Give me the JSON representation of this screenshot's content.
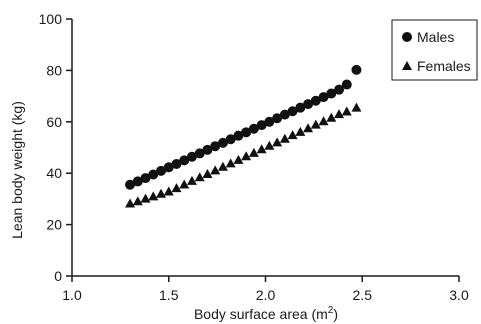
{
  "chart_data": {
    "type": "scatter",
    "title": "",
    "xlabel": "Body surface area (m",
    "xlabel_sup": "2",
    "xlabel_close": ")",
    "ylabel": "Lean body weight (kg)",
    "xlim": [
      1.0,
      3.0
    ],
    "ylim": [
      0,
      100
    ],
    "xticks": [
      "1.0",
      "1.5",
      "2.0",
      "2.5",
      "3.0"
    ],
    "yticks": [
      "0",
      "20",
      "40",
      "60",
      "80",
      "100"
    ],
    "grid": false,
    "legend_position": "top-right",
    "series": [
      {
        "name": "Males",
        "marker": "circle",
        "color": "#111111",
        "x": [
          1.3,
          1.34,
          1.38,
          1.42,
          1.46,
          1.5,
          1.54,
          1.58,
          1.62,
          1.66,
          1.7,
          1.74,
          1.78,
          1.82,
          1.86,
          1.9,
          1.94,
          1.98,
          2.02,
          2.06,
          2.1,
          2.14,
          2.18,
          2.22,
          2.26,
          2.3,
          2.34,
          2.38,
          2.42,
          2.47
        ],
        "y": [
          35.5,
          36.8,
          38.1,
          39.5,
          40.9,
          42.3,
          43.6,
          45.0,
          46.4,
          47.7,
          49.1,
          50.5,
          51.8,
          53.2,
          54.6,
          55.9,
          57.3,
          58.7,
          60.0,
          61.4,
          62.8,
          64.1,
          65.5,
          66.9,
          68.2,
          69.6,
          71.0,
          72.5,
          74.5,
          80.2
        ]
      },
      {
        "name": "Females",
        "marker": "triangle",
        "color": "#111111",
        "x": [
          1.3,
          1.34,
          1.38,
          1.42,
          1.46,
          1.5,
          1.54,
          1.58,
          1.62,
          1.66,
          1.7,
          1.74,
          1.78,
          1.82,
          1.86,
          1.9,
          1.94,
          1.98,
          2.02,
          2.06,
          2.1,
          2.14,
          2.18,
          2.22,
          2.26,
          2.3,
          2.34,
          2.38,
          2.42,
          2.47
        ],
        "y": [
          28.2,
          29.1,
          30.1,
          31.0,
          32.0,
          32.9,
          34.2,
          35.6,
          37.0,
          38.4,
          39.7,
          41.1,
          42.5,
          43.8,
          45.2,
          46.6,
          47.9,
          49.3,
          50.7,
          52.0,
          53.4,
          54.8,
          56.1,
          57.5,
          58.9,
          60.2,
          61.6,
          63.0,
          64.0,
          65.5
        ]
      }
    ]
  }
}
